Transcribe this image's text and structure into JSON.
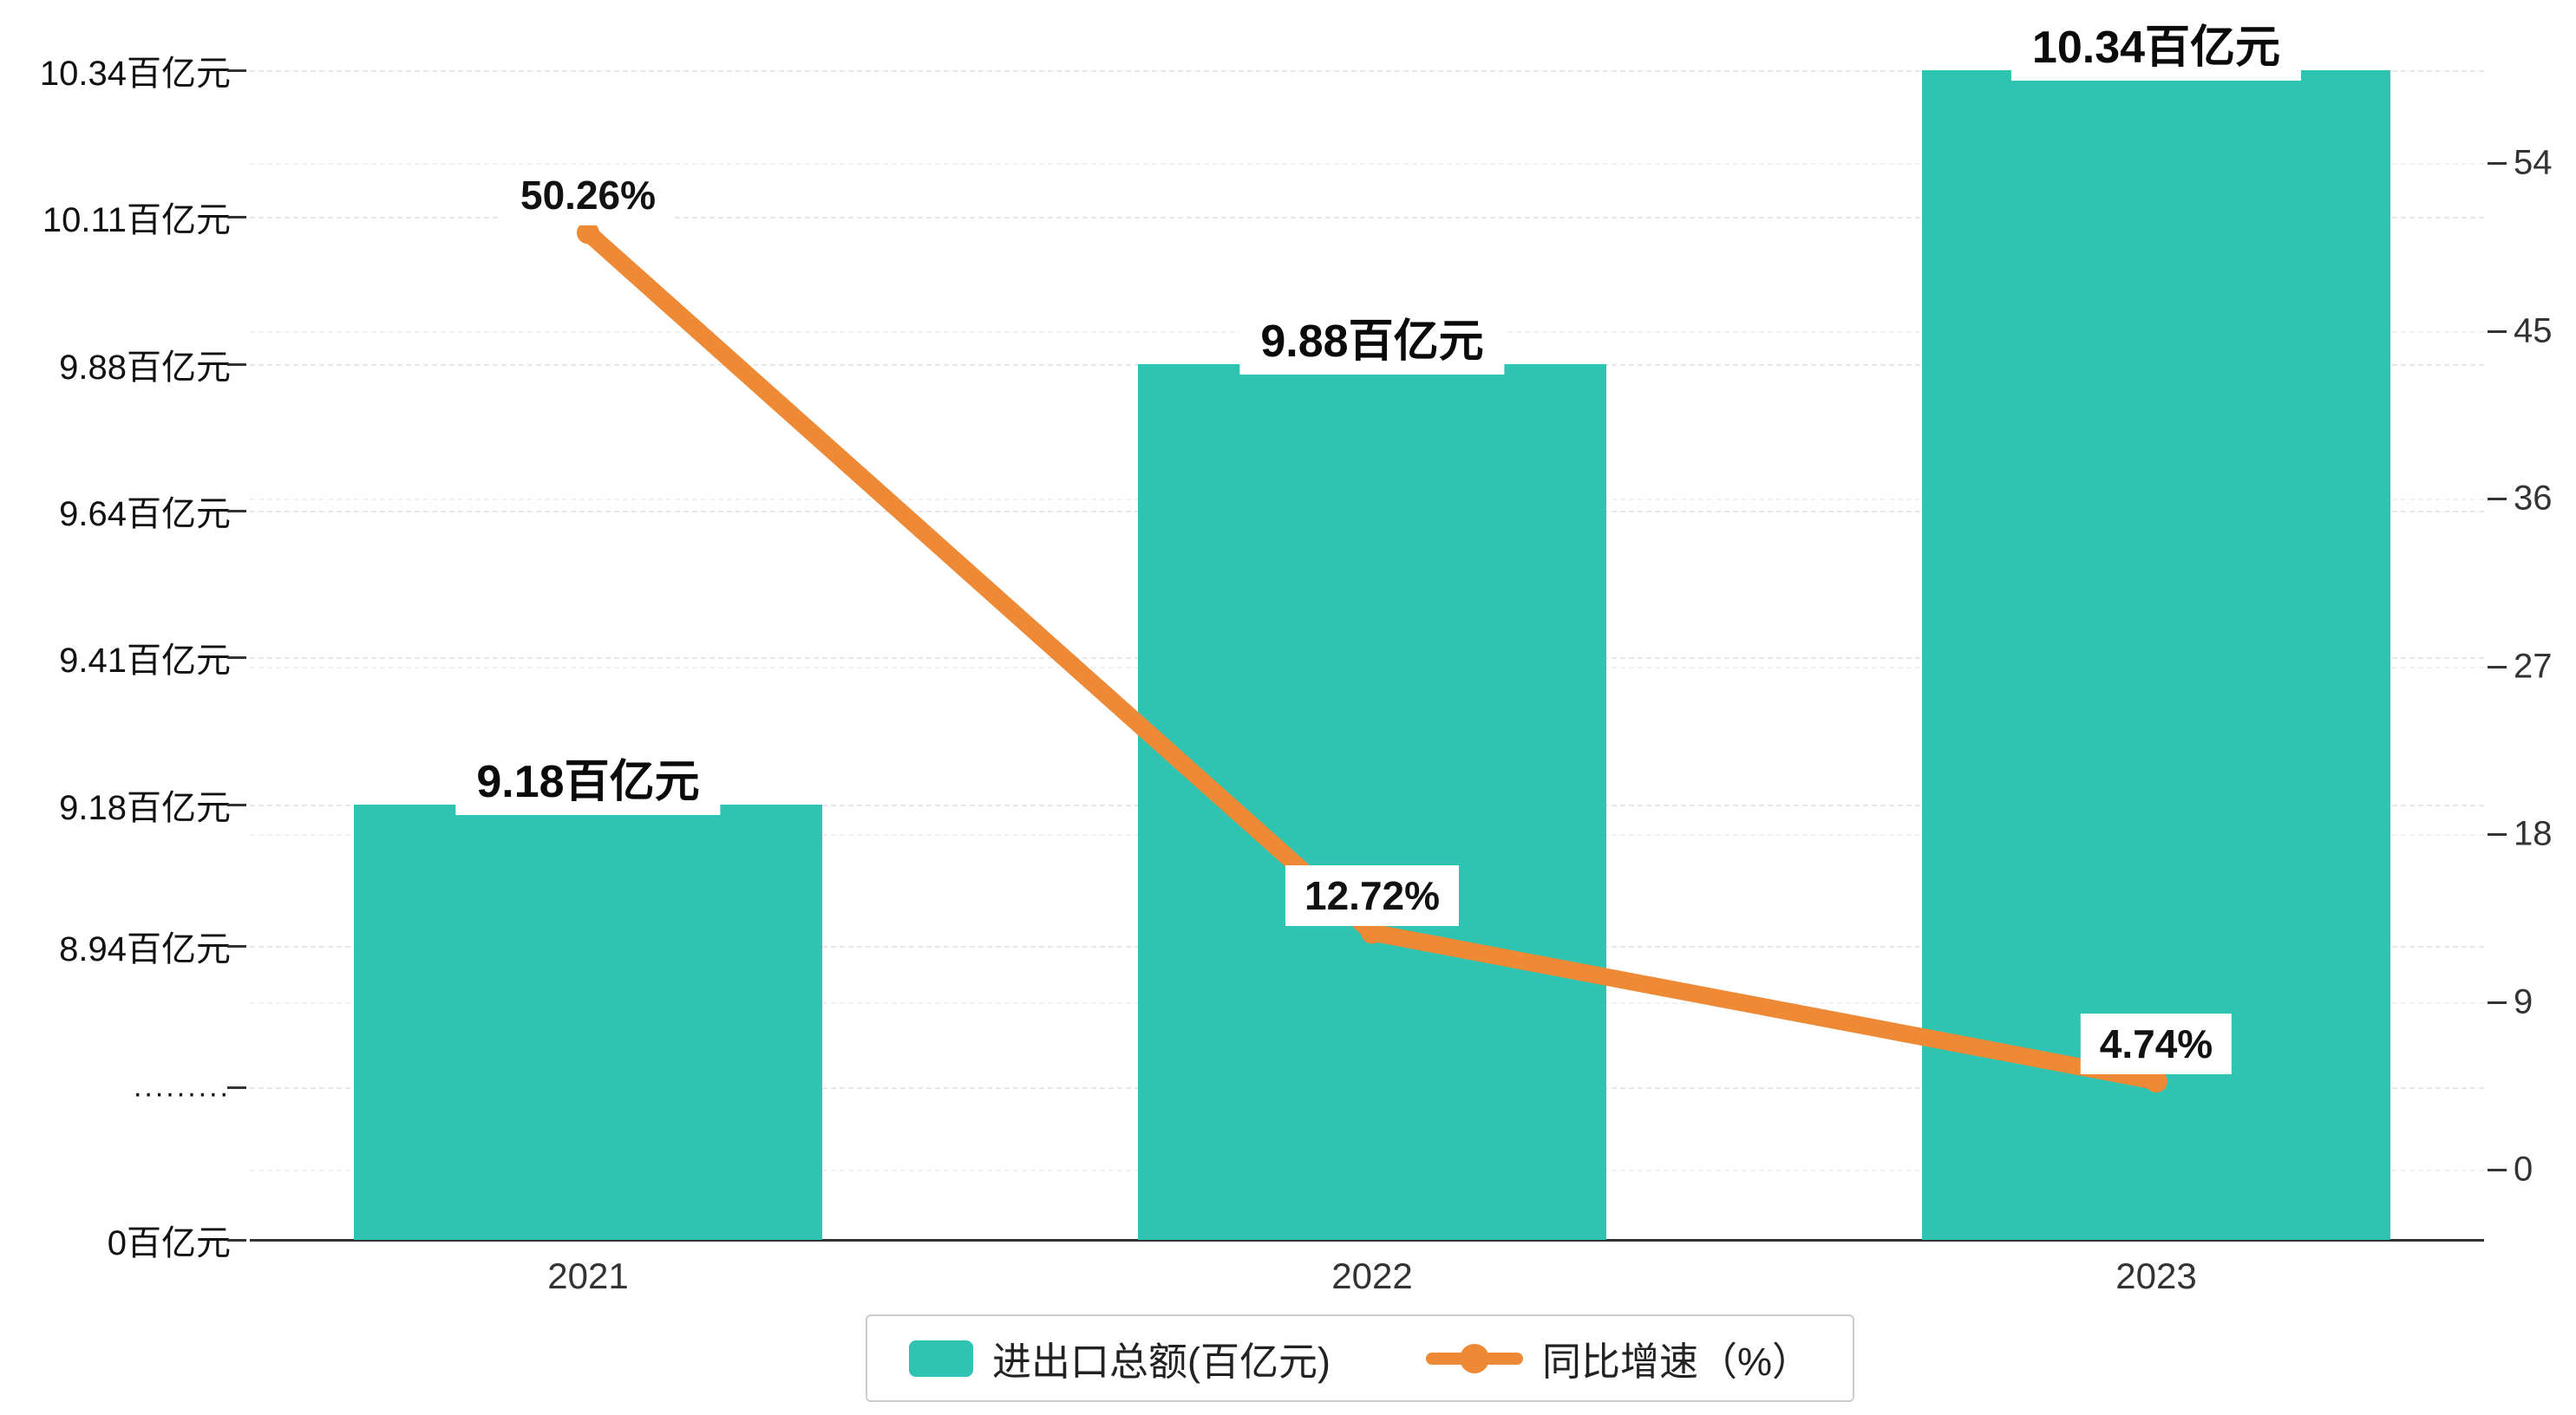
{
  "chart_data": {
    "type": "bar",
    "categories": [
      "2021",
      "2022",
      "2023"
    ],
    "series": [
      {
        "name": "进出口总额(百亿元)",
        "type": "bar",
        "values": [
          9.18,
          9.88,
          10.34
        ],
        "labels": [
          "9.18百亿元",
          "9.88百亿元",
          "10.34百亿元"
        ],
        "unit": "百亿元",
        "color": "#2FC3B1"
      },
      {
        "name": "同比增速（%）",
        "type": "line",
        "values": [
          50.26,
          12.72,
          4.74
        ],
        "labels": [
          "50.26%",
          "12.72%",
          "4.74%"
        ],
        "unit": "%",
        "color": "#EE8A36"
      }
    ],
    "left_axis": {
      "tick_labels": [
        "10.34百亿元",
        "10.11百亿元",
        "9.88百亿元",
        "9.64百亿元",
        "9.41百亿元",
        "9.18百亿元",
        "8.94百亿元",
        ".........",
        "0百亿元"
      ],
      "broken": true
    },
    "right_axis": {
      "tick_labels": [
        "54",
        "45",
        "36",
        "27",
        "18",
        "9",
        "0"
      ],
      "values": [
        54,
        45,
        36,
        27,
        18,
        9,
        0
      ],
      "range": [
        0,
        54
      ]
    },
    "legend": [
      {
        "label": "进出口总额(百亿元)",
        "marker": "bar-swatch",
        "color": "#2FC3B1"
      },
      {
        "label": "同比增速（%）",
        "marker": "line-dot-swatch",
        "color": "#EE8A36"
      }
    ],
    "grid": true,
    "legend_position": "bottom-center"
  }
}
